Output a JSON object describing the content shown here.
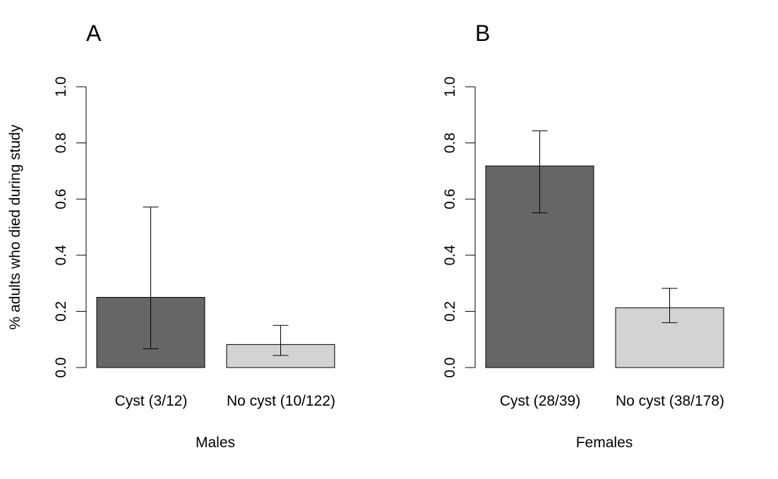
{
  "figure": {
    "ylabel": "% adults who died during study",
    "colors": {
      "cyst": "#666666",
      "no_cyst": "#d3d3d3",
      "stroke": "#000000"
    }
  },
  "chart_data": [
    {
      "type": "bar",
      "panel": "A",
      "xlabel": "Males",
      "ylabel": "% adults who died during study",
      "ylim": [
        0,
        1.0
      ],
      "yticks": [
        "0.0",
        "0.2",
        "0.4",
        "0.6",
        "0.8",
        "1.0"
      ],
      "categories": [
        "Cyst (3/12)",
        "No cyst (10/122)"
      ],
      "values": [
        0.25,
        0.082
      ],
      "error_lower": [
        0.067,
        0.043
      ],
      "error_upper": [
        0.572,
        0.15
      ],
      "colors": [
        "#666666",
        "#d3d3d3"
      ],
      "grid": false
    },
    {
      "type": "bar",
      "panel": "B",
      "xlabel": "Females",
      "ylabel": "",
      "ylim": [
        0,
        1.0
      ],
      "yticks": [
        "0.0",
        "0.2",
        "0.4",
        "0.6",
        "0.8",
        "1.0"
      ],
      "categories": [
        "Cyst (28/39)",
        "No cyst (38/178)"
      ],
      "values": [
        0.718,
        0.213
      ],
      "error_lower": [
        0.551,
        0.16
      ],
      "error_upper": [
        0.843,
        0.282
      ],
      "colors": [
        "#666666",
        "#d3d3d3"
      ],
      "grid": false
    }
  ]
}
